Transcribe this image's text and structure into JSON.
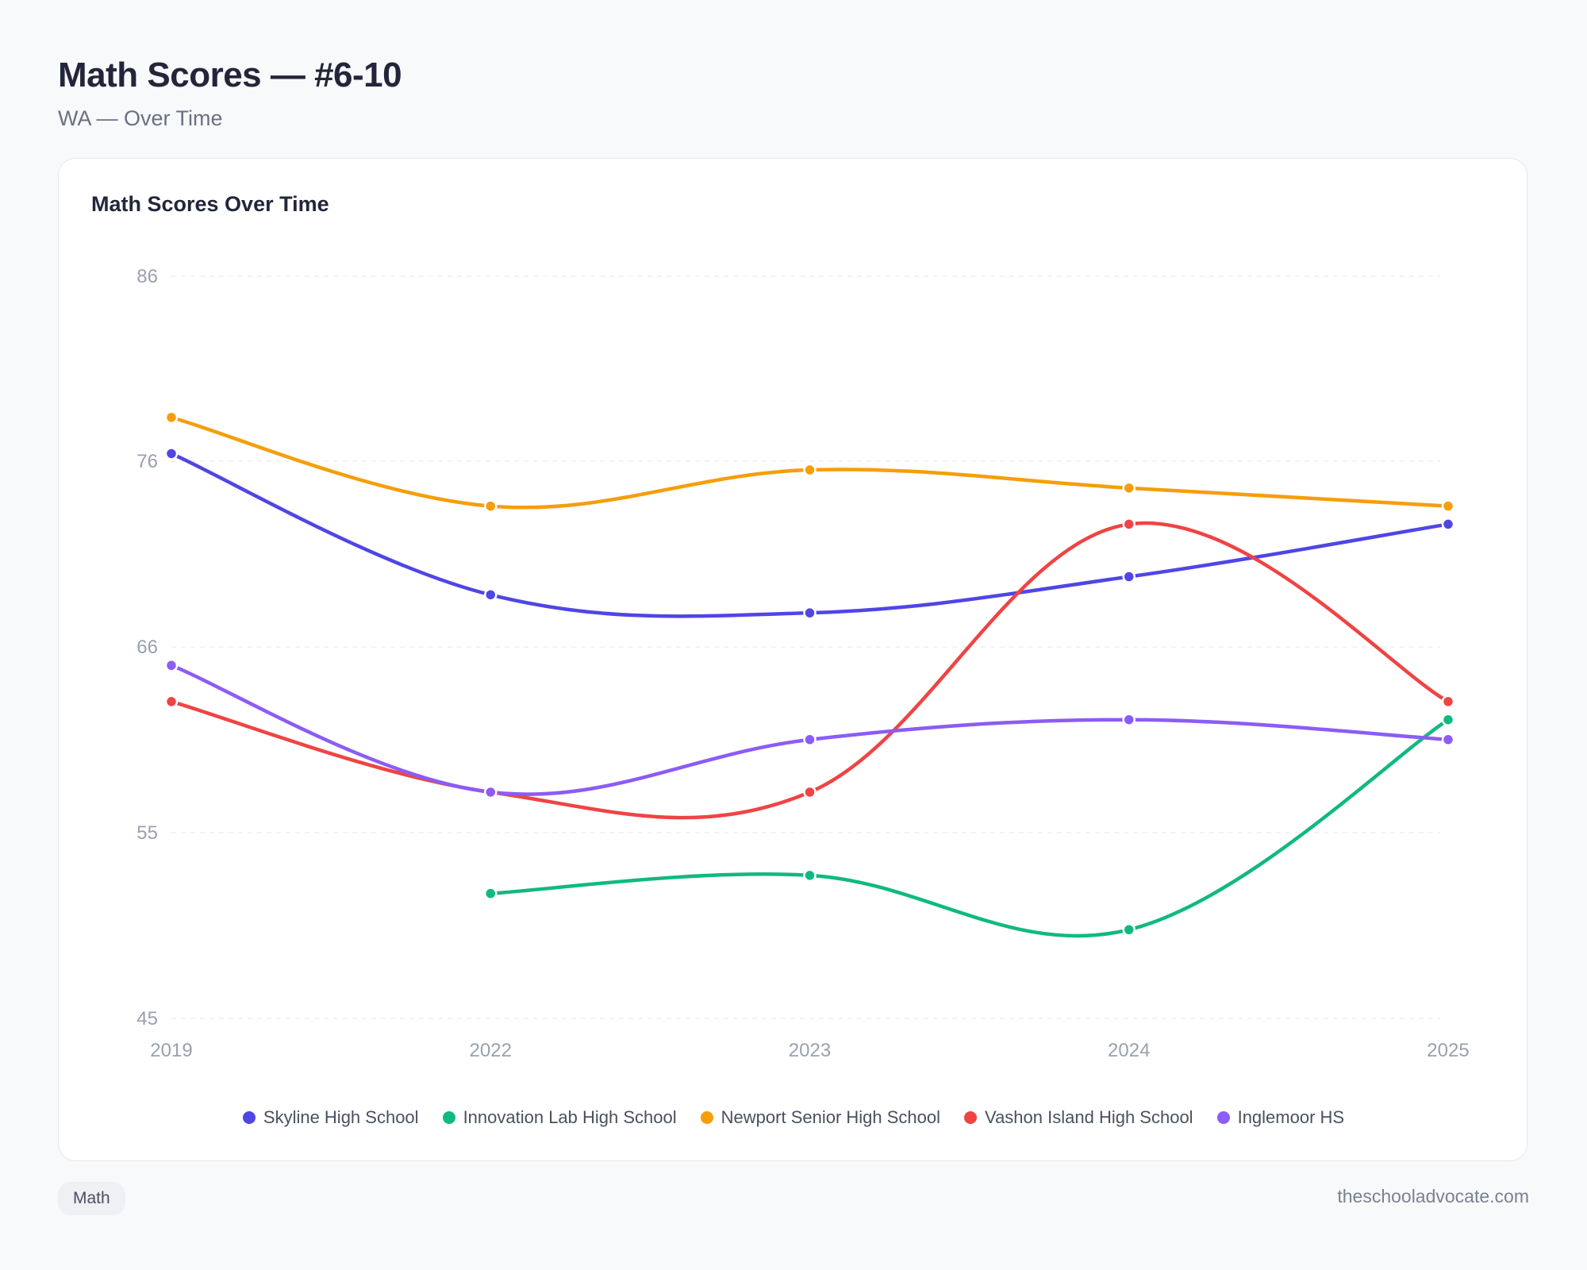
{
  "header": {
    "title": "Math Scores — #6-10",
    "subtitle": "WA — Over Time"
  },
  "card": {
    "title": "Math Scores Over Time"
  },
  "footer": {
    "badge": "Math",
    "site": "theschooladvocate.com"
  },
  "chart_data": {
    "type": "line",
    "title": "Math Scores Over Time",
    "x": [
      "2019",
      "2022",
      "2023",
      "2024",
      "2025"
    ],
    "y_ticks": [
      86,
      76,
      66,
      55,
      45
    ],
    "ylim": [
      45,
      86
    ],
    "grid": true,
    "legend_position": "bottom",
    "series": [
      {
        "name": "Skyline High School",
        "color": "#4f46e5",
        "values": [
          76.2,
          68.4,
          67.4,
          69.4,
          72.3
        ]
      },
      {
        "name": "Innovation Lab High School",
        "color": "#10b981",
        "values": [
          null,
          51.9,
          52.9,
          49.9,
          61.5
        ]
      },
      {
        "name": "Newport Senior High School",
        "color": "#f59e0b",
        "values": [
          78.2,
          73.3,
          75.3,
          74.3,
          73.3
        ]
      },
      {
        "name": "Vashon Island High School",
        "color": "#ef4444",
        "values": [
          62.5,
          57.5,
          57.5,
          72.3,
          62.5
        ]
      },
      {
        "name": "Inglemoor HS",
        "color": "#8b5cf6",
        "values": [
          64.5,
          57.5,
          60.4,
          61.5,
          60.4
        ]
      }
    ]
  }
}
